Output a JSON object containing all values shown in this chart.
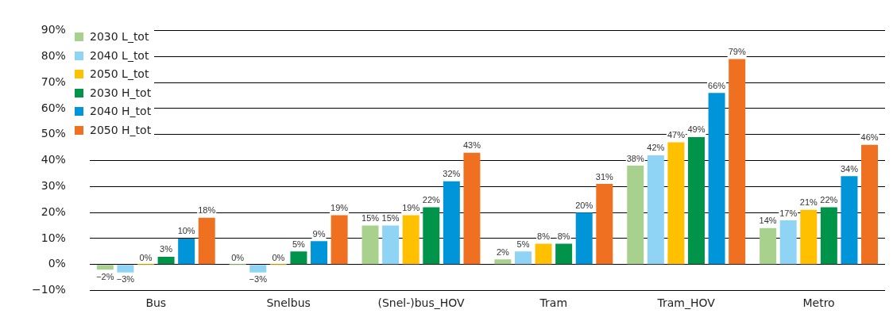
{
  "chart_data": {
    "type": "bar",
    "categories": [
      "Bus",
      "Snelbus",
      "(Snel-)bus_HOV",
      "Tram",
      "Tram_HOV",
      "Metro"
    ],
    "series": [
      {
        "name": "2030 L_tot",
        "color": "#a9d18e",
        "values": [
          -2,
          0,
          15,
          2,
          38,
          14
        ],
        "value_labels": [
          "−2%",
          "0%",
          "15%",
          "2%",
          "38%",
          "14%"
        ]
      },
      {
        "name": "2040 L_tot",
        "color": "#8fd4f4",
        "values": [
          -3,
          -3,
          15,
          5,
          42,
          17
        ],
        "value_labels": [
          "−3%",
          "−3%",
          "15%",
          "5%",
          "42%",
          "17%"
        ]
      },
      {
        "name": "2050 L_tot",
        "color": "#ffc000",
        "values": [
          0,
          0,
          19,
          8,
          47,
          21
        ],
        "value_labels": [
          "0%",
          "0%",
          "19%",
          "8%",
          "47%",
          "21%"
        ]
      },
      {
        "name": "2030 H_tot",
        "color": "#00944a",
        "values": [
          3,
          5,
          22,
          8,
          49,
          22
        ],
        "value_labels": [
          "3%",
          "5%",
          "22%",
          "8%",
          "49%",
          "22%"
        ]
      },
      {
        "name": "2040 H_tot",
        "color": "#0095d8",
        "values": [
          10,
          9,
          32,
          20,
          66,
          34
        ],
        "value_labels": [
          "10%",
          "9%",
          "32%",
          "20%",
          "66%",
          "34%"
        ]
      },
      {
        "name": "2050 H_tot",
        "color": "#f07021",
        "values": [
          18,
          19,
          43,
          31,
          79,
          46
        ],
        "value_labels": [
          "18%",
          "19%",
          "43%",
          "31%",
          "79%",
          "46%"
        ]
      }
    ],
    "ylim": [
      -10,
      90
    ],
    "yticks": [
      {
        "value": -10,
        "label": "−10%"
      },
      {
        "value": 0,
        "label": "0%"
      },
      {
        "value": 10,
        "label": "10%"
      },
      {
        "value": 20,
        "label": "20%"
      },
      {
        "value": 30,
        "label": "30%"
      },
      {
        "value": 40,
        "label": "40%"
      },
      {
        "value": 50,
        "label": "50%"
      },
      {
        "value": 60,
        "label": "60%"
      },
      {
        "value": 70,
        "label": "70%"
      },
      {
        "value": 80,
        "label": "80%"
      },
      {
        "value": 90,
        "label": "90%"
      }
    ],
    "grid": "y",
    "legend": "top left"
  }
}
